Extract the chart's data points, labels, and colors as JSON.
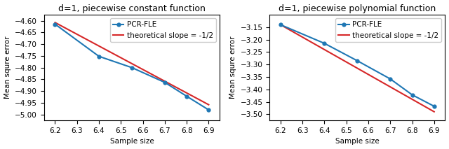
{
  "left": {
    "title": "d=1, piecewise constant function",
    "xlabel": "Sample size",
    "ylabel": "Mean squre error",
    "xlim": [
      6.15,
      6.95
    ],
    "ylim": [
      -5.025,
      -4.575
    ],
    "yticks": [
      -4.6,
      -4.65,
      -4.7,
      -4.75,
      -4.8,
      -4.85,
      -4.9,
      -4.95,
      -5.0
    ],
    "xticks": [
      6.2,
      6.3,
      6.4,
      6.5,
      6.6,
      6.7,
      6.8,
      6.9
    ],
    "blue_x": [
      6.2,
      6.4,
      6.55,
      6.7,
      6.8,
      6.9
    ],
    "blue_y": [
      -4.615,
      -4.752,
      -4.8,
      -4.863,
      -4.922,
      -4.98
    ],
    "red_x": [
      6.2,
      6.9
    ],
    "red_y": [
      -4.608,
      -4.958
    ],
    "legend_labels": [
      "PCR-FLE",
      "theoretical slope = -1/2"
    ]
  },
  "right": {
    "title": "d=1, piecewise polynomial function",
    "xlabel": "Sample size",
    "ylabel": "Mean squre error",
    "xlim": [
      6.15,
      6.95
    ],
    "ylim": [
      -3.525,
      -3.1
    ],
    "yticks": [
      -3.15,
      -3.2,
      -3.25,
      -3.3,
      -3.35,
      -3.4,
      -3.45,
      -3.5
    ],
    "xticks": [
      6.2,
      6.3,
      6.4,
      6.5,
      6.6,
      6.7,
      6.8,
      6.9
    ],
    "blue_x": [
      6.2,
      6.4,
      6.55,
      6.7,
      6.8,
      6.9
    ],
    "blue_y": [
      -3.14,
      -3.215,
      -3.285,
      -3.358,
      -3.422,
      -3.468
    ],
    "red_x": [
      6.2,
      6.9
    ],
    "red_y": [
      -3.14,
      -3.49
    ],
    "legend_labels": [
      "PCR-FLE",
      "theoretical slope = -1/2"
    ]
  },
  "blue_color": "#1f77b4",
  "red_color": "#d62728",
  "marker": "o",
  "markersize": 3.5,
  "linewidth": 1.5,
  "title_fontsize": 9,
  "label_fontsize": 7.5,
  "tick_fontsize": 7.5,
  "legend_fontsize": 7.5
}
